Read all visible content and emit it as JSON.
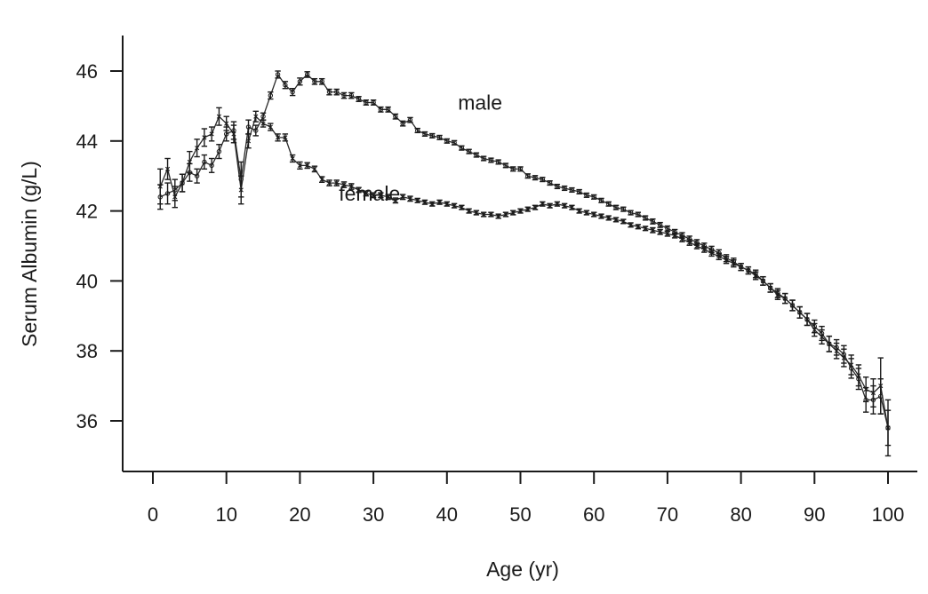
{
  "chart_data": {
    "type": "line",
    "xlabel": "Age (yr)",
    "ylabel": "Serum Albumin (g/L)",
    "xlim": [
      -4,
      104
    ],
    "ylim": [
      35.1,
      47.0
    ],
    "xticks": [
      0,
      10,
      20,
      30,
      40,
      50,
      60,
      70,
      80,
      90,
      100
    ],
    "yticks": [
      36,
      38,
      40,
      42,
      44,
      46
    ],
    "grid": false,
    "legend": "none",
    "series": [
      {
        "name": "male",
        "marker": "circle",
        "label_at": [
          41.5,
          44.9
        ],
        "x": [
          1,
          2,
          3,
          4,
          5,
          6,
          7,
          8,
          9,
          10,
          11,
          12,
          13,
          14,
          15,
          16,
          17,
          18,
          19,
          20,
          21,
          22,
          23,
          24,
          25,
          26,
          27,
          28,
          29,
          30,
          31,
          32,
          33,
          34,
          35,
          36,
          37,
          38,
          39,
          40,
          41,
          42,
          43,
          44,
          45,
          46,
          47,
          48,
          49,
          50,
          51,
          52,
          53,
          54,
          55,
          56,
          57,
          58,
          59,
          60,
          61,
          62,
          63,
          64,
          65,
          66,
          67,
          68,
          69,
          70,
          71,
          72,
          73,
          74,
          75,
          76,
          77,
          78,
          79,
          80,
          81,
          82,
          83,
          84,
          85,
          86,
          87,
          88,
          89,
          90,
          91,
          92,
          93,
          94,
          95,
          96,
          97,
          98,
          99,
          100
        ],
        "y": [
          42.4,
          42.5,
          42.6,
          42.8,
          43.1,
          43.0,
          43.4,
          43.3,
          43.7,
          44.2,
          44.3,
          42.9,
          44.4,
          44.3,
          44.7,
          45.3,
          45.9,
          45.6,
          45.4,
          45.7,
          45.9,
          45.7,
          45.7,
          45.4,
          45.4,
          45.3,
          45.3,
          45.2,
          45.1,
          45.1,
          44.9,
          44.9,
          44.7,
          44.5,
          44.6,
          44.3,
          44.2,
          44.15,
          44.1,
          44.0,
          43.95,
          43.8,
          43.7,
          43.6,
          43.5,
          43.45,
          43.4,
          43.3,
          43.2,
          43.2,
          43.0,
          42.95,
          42.9,
          42.8,
          42.7,
          42.65,
          42.6,
          42.55,
          42.45,
          42.4,
          42.3,
          42.2,
          42.1,
          42.05,
          41.95,
          41.9,
          41.8,
          41.7,
          41.6,
          41.5,
          41.4,
          41.3,
          41.2,
          41.1,
          41.0,
          40.9,
          40.8,
          40.65,
          40.55,
          40.4,
          40.3,
          40.2,
          40.0,
          39.8,
          39.65,
          39.5,
          39.3,
          39.1,
          38.9,
          38.7,
          38.5,
          38.2,
          38.1,
          37.9,
          37.5,
          37.2,
          36.6,
          36.6,
          36.7,
          35.8
        ],
        "err": [
          0.35,
          0.3,
          0.3,
          0.25,
          0.25,
          0.2,
          0.2,
          0.2,
          0.2,
          0.2,
          0.25,
          0.5,
          0.2,
          0.15,
          0.1,
          0.1,
          0.1,
          0.1,
          0.1,
          0.1,
          0.08,
          0.08,
          0.08,
          0.08,
          0.08,
          0.08,
          0.08,
          0.07,
          0.07,
          0.07,
          0.07,
          0.07,
          0.07,
          0.07,
          0.07,
          0.06,
          0.06,
          0.06,
          0.06,
          0.06,
          0.06,
          0.06,
          0.06,
          0.06,
          0.06,
          0.06,
          0.06,
          0.06,
          0.06,
          0.06,
          0.06,
          0.06,
          0.06,
          0.06,
          0.06,
          0.06,
          0.06,
          0.06,
          0.06,
          0.06,
          0.06,
          0.06,
          0.06,
          0.06,
          0.06,
          0.06,
          0.06,
          0.07,
          0.07,
          0.07,
          0.07,
          0.08,
          0.08,
          0.08,
          0.08,
          0.09,
          0.09,
          0.1,
          0.1,
          0.1,
          0.1,
          0.11,
          0.12,
          0.12,
          0.13,
          0.14,
          0.15,
          0.16,
          0.17,
          0.18,
          0.2,
          0.22,
          0.22,
          0.25,
          0.28,
          0.3,
          0.35,
          0.4,
          0.5,
          0.8
        ]
      },
      {
        "name": "female",
        "marker": "x",
        "label_at": [
          25.3,
          42.3
        ],
        "x": [
          1,
          2,
          3,
          4,
          5,
          6,
          7,
          8,
          9,
          10,
          11,
          12,
          13,
          14,
          15,
          16,
          17,
          18,
          19,
          20,
          21,
          22,
          23,
          24,
          25,
          26,
          27,
          28,
          29,
          30,
          31,
          32,
          33,
          34,
          35,
          36,
          37,
          38,
          39,
          40,
          41,
          42,
          43,
          44,
          45,
          46,
          47,
          48,
          49,
          50,
          51,
          52,
          53,
          54,
          55,
          56,
          57,
          58,
          59,
          60,
          61,
          62,
          63,
          64,
          65,
          66,
          67,
          68,
          69,
          70,
          71,
          72,
          73,
          74,
          75,
          76,
          77,
          78,
          79,
          80,
          81,
          82,
          83,
          84,
          85,
          86,
          87,
          88,
          89,
          90,
          91,
          92,
          93,
          94,
          95,
          96,
          97,
          98,
          99,
          100
        ],
        "y": [
          42.7,
          43.2,
          42.4,
          42.8,
          43.4,
          43.8,
          44.1,
          44.2,
          44.7,
          44.5,
          44.2,
          42.6,
          44.0,
          44.7,
          44.5,
          44.4,
          44.1,
          44.1,
          43.5,
          43.3,
          43.3,
          43.2,
          42.9,
          42.8,
          42.8,
          42.75,
          42.7,
          42.6,
          42.5,
          42.45,
          42.45,
          42.4,
          42.3,
          42.4,
          42.35,
          42.3,
          42.25,
          42.2,
          42.25,
          42.2,
          42.15,
          42.1,
          42.0,
          41.95,
          41.9,
          41.9,
          41.85,
          41.9,
          41.95,
          42.0,
          42.05,
          42.1,
          42.2,
          42.15,
          42.2,
          42.15,
          42.1,
          42.0,
          41.95,
          41.9,
          41.85,
          41.8,
          41.75,
          41.7,
          41.6,
          41.55,
          41.5,
          41.45,
          41.4,
          41.35,
          41.3,
          41.2,
          41.1,
          41.0,
          40.9,
          40.8,
          40.7,
          40.6,
          40.5,
          40.4,
          40.3,
          40.15,
          40.0,
          39.8,
          39.6,
          39.5,
          39.3,
          39.1,
          38.9,
          38.6,
          38.4,
          38.2,
          38.0,
          37.8,
          37.6,
          37.3,
          36.9,
          36.8,
          37.0,
          35.8
        ],
        "err": [
          0.5,
          0.3,
          0.3,
          0.25,
          0.3,
          0.25,
          0.25,
          0.2,
          0.25,
          0.2,
          0.25,
          0.4,
          0.2,
          0.15,
          0.1,
          0.1,
          0.1,
          0.1,
          0.1,
          0.1,
          0.08,
          0.08,
          0.08,
          0.08,
          0.08,
          0.08,
          0.08,
          0.07,
          0.07,
          0.07,
          0.07,
          0.07,
          0.07,
          0.07,
          0.07,
          0.06,
          0.06,
          0.06,
          0.06,
          0.06,
          0.06,
          0.06,
          0.06,
          0.06,
          0.06,
          0.06,
          0.06,
          0.06,
          0.06,
          0.06,
          0.06,
          0.06,
          0.06,
          0.06,
          0.06,
          0.06,
          0.06,
          0.06,
          0.06,
          0.06,
          0.06,
          0.06,
          0.06,
          0.06,
          0.06,
          0.06,
          0.06,
          0.07,
          0.07,
          0.07,
          0.07,
          0.08,
          0.08,
          0.08,
          0.08,
          0.09,
          0.09,
          0.1,
          0.1,
          0.1,
          0.1,
          0.11,
          0.12,
          0.12,
          0.13,
          0.14,
          0.15,
          0.16,
          0.17,
          0.18,
          0.2,
          0.22,
          0.22,
          0.25,
          0.28,
          0.3,
          0.35,
          0.4,
          0.8,
          0.5
        ]
      }
    ]
  }
}
